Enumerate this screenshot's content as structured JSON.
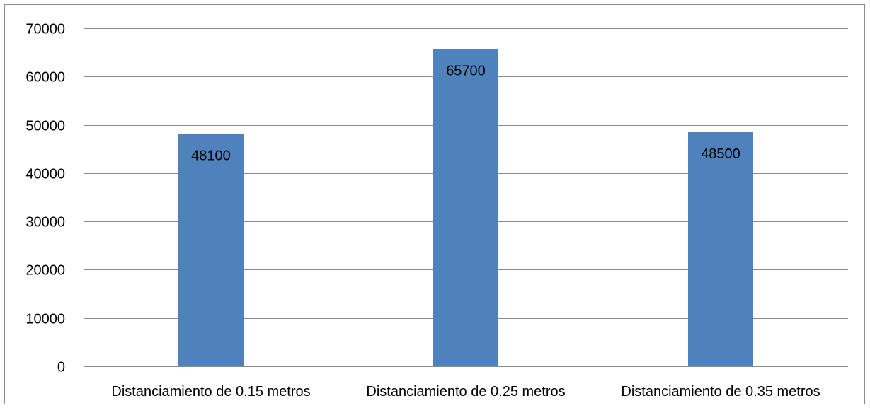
{
  "chart_data": {
    "type": "bar",
    "categories": [
      "Distanciamiento de 0.15 metros",
      "Distanciamiento de 0.25 metros",
      "Distanciamiento de 0.35 metros"
    ],
    "values": [
      48100,
      65700,
      48500
    ],
    "data_labels": [
      "48100",
      "65700",
      "48500"
    ],
    "ylim": [
      0,
      70000
    ],
    "yticks": [
      "0",
      "10000",
      "20000",
      "30000",
      "40000",
      "50000",
      "60000",
      "70000"
    ],
    "grid": true,
    "legend": "none",
    "bar_color": "#4f81bd",
    "grid_color": "#8c8c8c"
  }
}
